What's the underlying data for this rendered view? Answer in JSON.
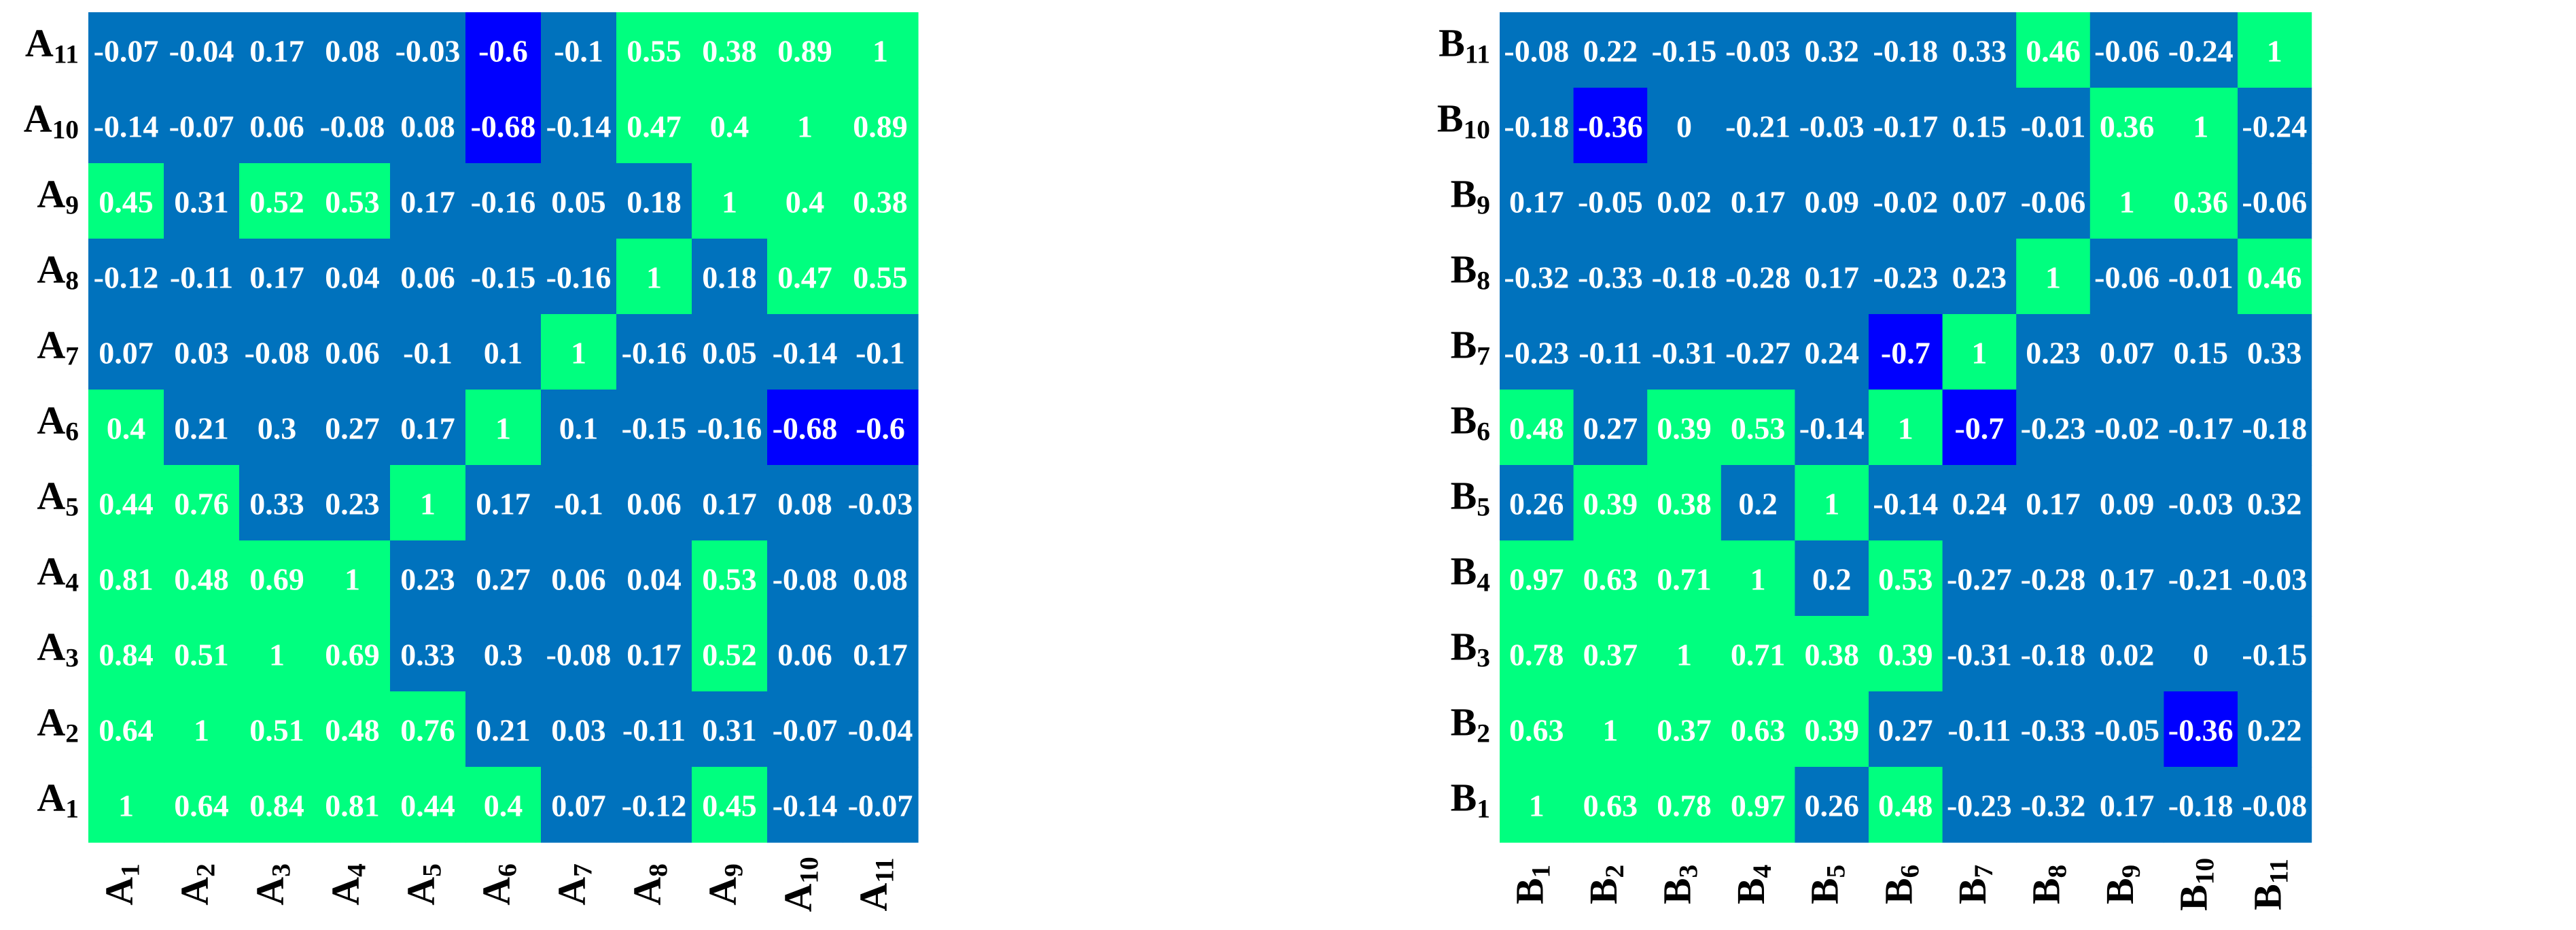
{
  "colors": {
    "positive": "#00ff7f",
    "mid": "#0072bd",
    "negative": "#0000ff",
    "text": "#ffffff",
    "label": "#000000"
  },
  "chart_data": [
    {
      "type": "heatmap",
      "title": "",
      "label_prefix": "A",
      "rows": [
        "A11",
        "A10",
        "A9",
        "A8",
        "A7",
        "A6",
        "A5",
        "A4",
        "A3",
        "A2",
        "A1"
      ],
      "columns": [
        "A1",
        "A2",
        "A3",
        "A4",
        "A5",
        "A6",
        "A7",
        "A8",
        "A9",
        "A10",
        "A11"
      ],
      "color_thresholds": {
        "positive_min": 0.35,
        "negative_max": -0.35
      },
      "values": [
        [
          "-0.07",
          "-0.04",
          "0.17",
          "0.08",
          "-0.03",
          "-0.6",
          "-0.1",
          "0.55",
          "0.38",
          "0.89",
          "1"
        ],
        [
          "-0.14",
          "-0.07",
          "0.06",
          "-0.08",
          "0.08",
          "-0.68",
          "-0.14",
          "0.47",
          "0.4",
          "1",
          "0.89"
        ],
        [
          "0.45",
          "0.31",
          "0.52",
          "0.53",
          "0.17",
          "-0.16",
          "0.05",
          "0.18",
          "1",
          "0.4",
          "0.38"
        ],
        [
          "-0.12",
          "-0.11",
          "0.17",
          "0.04",
          "0.06",
          "-0.15",
          "-0.16",
          "1",
          "0.18",
          "0.47",
          "0.55"
        ],
        [
          "0.07",
          "0.03",
          "-0.08",
          "0.06",
          "-0.1",
          "0.1",
          "1",
          "-0.16",
          "0.05",
          "-0.14",
          "-0.1"
        ],
        [
          "0.4",
          "0.21",
          "0.3",
          "0.27",
          "0.17",
          "1",
          "0.1",
          "-0.15",
          "-0.16",
          "-0.68",
          "-0.6"
        ],
        [
          "0.44",
          "0.76",
          "0.33",
          "0.23",
          "1",
          "0.17",
          "-0.1",
          "0.06",
          "0.17",
          "0.08",
          "-0.03"
        ],
        [
          "0.81",
          "0.48",
          "0.69",
          "1",
          "0.23",
          "0.27",
          "0.06",
          "0.04",
          "0.53",
          "-0.08",
          "0.08"
        ],
        [
          "0.84",
          "0.51",
          "1",
          "0.69",
          "0.33",
          "0.3",
          "-0.08",
          "0.17",
          "0.52",
          "0.06",
          "0.17"
        ],
        [
          "0.64",
          "1",
          "0.51",
          "0.48",
          "0.76",
          "0.21",
          "0.03",
          "-0.11",
          "0.31",
          "-0.07",
          "-0.04"
        ],
        [
          "1",
          "0.64",
          "0.84",
          "0.81",
          "0.44",
          "0.4",
          "0.07",
          "-0.12",
          "0.45",
          "-0.14",
          "-0.07"
        ]
      ]
    },
    {
      "type": "heatmap",
      "title": "",
      "label_prefix": "B",
      "rows": [
        "B11",
        "B10",
        "B9",
        "B8",
        "B7",
        "B6",
        "B5",
        "B4",
        "B3",
        "B2",
        "B1"
      ],
      "columns": [
        "B1",
        "B2",
        "B3",
        "B4",
        "B5",
        "B6",
        "B7",
        "B8",
        "B9",
        "B10",
        "B11"
      ],
      "color_thresholds": {
        "positive_min": 0.35,
        "negative_max": -0.35
      },
      "values": [
        [
          "-0.08",
          "0.22",
          "-0.15",
          "-0.03",
          "0.32",
          "-0.18",
          "0.33",
          "0.46",
          "-0.06",
          "-0.24",
          "1"
        ],
        [
          "-0.18",
          "-0.36",
          "0",
          "-0.21",
          "-0.03",
          "-0.17",
          "0.15",
          "-0.01",
          "0.36",
          "1",
          "-0.24"
        ],
        [
          "0.17",
          "-0.05",
          "0.02",
          "0.17",
          "0.09",
          "-0.02",
          "0.07",
          "-0.06",
          "1",
          "0.36",
          "-0.06"
        ],
        [
          "-0.32",
          "-0.33",
          "-0.18",
          "-0.28",
          "0.17",
          "-0.23",
          "0.23",
          "1",
          "-0.06",
          "-0.01",
          "0.46"
        ],
        [
          "-0.23",
          "-0.11",
          "-0.31",
          "-0.27",
          "0.24",
          "-0.7",
          "1",
          "0.23",
          "0.07",
          "0.15",
          "0.33"
        ],
        [
          "0.48",
          "0.27",
          "0.39",
          "0.53",
          "-0.14",
          "1",
          "-0.7",
          "-0.23",
          "-0.02",
          "-0.17",
          "-0.18"
        ],
        [
          "0.26",
          "0.39",
          "0.38",
          "0.2",
          "1",
          "-0.14",
          "0.24",
          "0.17",
          "0.09",
          "-0.03",
          "0.32"
        ],
        [
          "0.97",
          "0.63",
          "0.71",
          "1",
          "0.2",
          "0.53",
          "-0.27",
          "-0.28",
          "0.17",
          "-0.21",
          "-0.03"
        ],
        [
          "0.78",
          "0.37",
          "1",
          "0.71",
          "0.38",
          "0.39",
          "-0.31",
          "-0.18",
          "0.02",
          "0",
          "-0.15"
        ],
        [
          "0.63",
          "1",
          "0.37",
          "0.63",
          "0.39",
          "0.27",
          "-0.11",
          "-0.33",
          "-0.05",
          "-0.36",
          "0.22"
        ],
        [
          "1",
          "0.63",
          "0.78",
          "0.97",
          "0.26",
          "0.48",
          "-0.23",
          "-0.32",
          "0.17",
          "-0.18",
          "-0.08"
        ]
      ]
    }
  ]
}
